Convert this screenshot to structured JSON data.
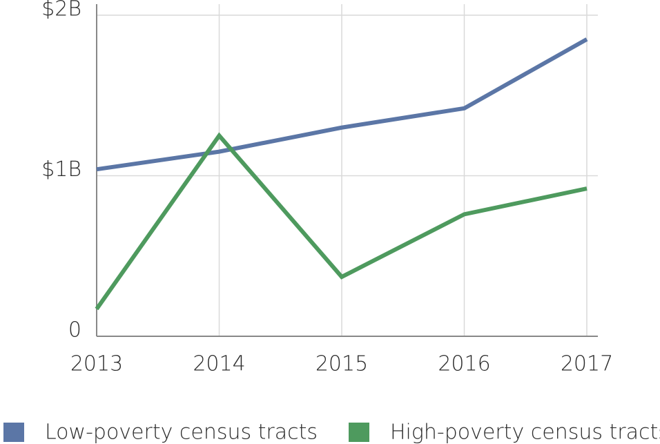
{
  "chart_data": {
    "type": "line",
    "x": [
      2013,
      2014,
      2015,
      2016,
      2017
    ],
    "series": [
      {
        "name": "Low-poverty census tracts",
        "color": "#5b76a6",
        "values": [
          1.04,
          1.15,
          1.3,
          1.42,
          1.85
        ]
      },
      {
        "name": "High-poverty census tracts",
        "color": "#4e9a5e",
        "values": [
          0.17,
          1.25,
          0.37,
          0.76,
          0.92
        ]
      }
    ],
    "xlim": [
      2013,
      2017
    ],
    "xticks": [
      2013,
      2014,
      2015,
      2016,
      2017
    ],
    "ylim": [
      0,
      2
    ],
    "yticks": [
      {
        "value": 0,
        "label": "0"
      },
      {
        "value": 1,
        "label": "$1B"
      },
      {
        "value": 2,
        "label": "$2B"
      }
    ],
    "grid": true,
    "legend": "bottom"
  }
}
